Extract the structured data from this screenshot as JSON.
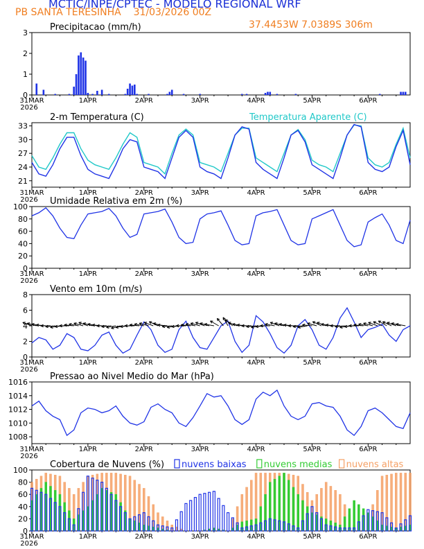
{
  "header": {
    "title": "MCTIC/INPE/CPTEC - MODELO REGIONAL WRF",
    "station": "PB SANTA TERESINHA",
    "run": "31/03/2026 00Z",
    "coords": "37.4453W 7.0389S 306m"
  },
  "colors": {
    "blue": "#1f33e6",
    "cyan": "#20c8c8",
    "orange": "#f5a065",
    "green": "#33cc33",
    "text_orange": "#f07e20",
    "title_blue": "#1a2fd6"
  },
  "time_axis": {
    "labels": [
      "31MAR",
      "1APR",
      "2APR",
      "3APR",
      "4APR",
      "5APR",
      "6APR"
    ],
    "year": "2026",
    "start_hour": 0,
    "end_hour": 162
  },
  "chart_data": [
    {
      "type": "bar",
      "id": "precip",
      "title": "Precipitacao (mm/h)",
      "ylim": [
        0,
        3
      ],
      "yticks": [
        0,
        1,
        2,
        3
      ],
      "color": "#1f33e6",
      "x": [
        2,
        5,
        10,
        16,
        18,
        19,
        20,
        21,
        22,
        23,
        24,
        26,
        28,
        30,
        33,
        40,
        41,
        42,
        43,
        44,
        45,
        50,
        58,
        59,
        60,
        65,
        72,
        90,
        92,
        100,
        101,
        102,
        105,
        113,
        149,
        158,
        159,
        160
      ],
      "y": [
        0.55,
        0.25,
        0.05,
        0.05,
        0.4,
        1.0,
        1.9,
        2.05,
        1.8,
        1.65,
        0.1,
        0.05,
        0.2,
        0.25,
        0.05,
        0.05,
        0.3,
        0.55,
        0.45,
        0.5,
        0.05,
        0.05,
        0.05,
        0.15,
        0.25,
        0.05,
        0.05,
        0.05,
        0.05,
        0.1,
        0.15,
        0.15,
        0.05,
        0.05,
        0.05,
        0.15,
        0.15,
        0.15
      ]
    },
    {
      "type": "line",
      "id": "temp",
      "title": "2-m Temperatura (C)",
      "ylim": [
        19.6,
        33.7
      ],
      "yticks": [
        21,
        24,
        27,
        30,
        33
      ],
      "series": [
        {
          "name": "Temperatura Aparente (C)",
          "color": "#20c8c8",
          "x": [
            0,
            3,
            6,
            9,
            12,
            15,
            18,
            21,
            24,
            27,
            30,
            33,
            36,
            39,
            42,
            45,
            48,
            51,
            54,
            57,
            60,
            63,
            66,
            69,
            72,
            75,
            78,
            81,
            84,
            87,
            90,
            93,
            96,
            99,
            102,
            105,
            108,
            111,
            114,
            117,
            120,
            123,
            126,
            129,
            132,
            135,
            138,
            141,
            144,
            147,
            150,
            153,
            156,
            159,
            162
          ],
          "y": [
            26.5,
            24,
            23.5,
            26,
            29,
            31.5,
            31.5,
            28,
            25.5,
            24.5,
            24,
            23.5,
            26,
            29,
            31.5,
            30.5,
            25,
            24.5,
            24,
            22.5,
            27,
            31,
            32.3,
            31,
            25,
            24.5,
            24,
            23,
            27,
            31,
            32.5,
            32.5,
            26,
            25,
            24,
            23,
            27,
            31,
            32.2,
            30,
            25.5,
            24.5,
            24,
            23,
            27,
            31,
            33.2,
            33,
            26,
            24.5,
            24,
            25,
            29,
            32.5,
            26
          ]
        },
        {
          "name": "",
          "color": "#1f33e6",
          "x": [
            0,
            3,
            6,
            9,
            12,
            15,
            18,
            21,
            24,
            27,
            30,
            33,
            36,
            39,
            42,
            45,
            48,
            51,
            54,
            57,
            60,
            63,
            66,
            69,
            72,
            75,
            78,
            81,
            84,
            87,
            90,
            93,
            96,
            99,
            102,
            105,
            108,
            111,
            114,
            117,
            120,
            123,
            126,
            129,
            132,
            135,
            138,
            141,
            144,
            147,
            150,
            153,
            156,
            159,
            162
          ],
          "y": [
            25,
            22.5,
            22,
            24.5,
            28,
            30.5,
            30.5,
            26.5,
            23.5,
            22.5,
            22,
            21.5,
            24.5,
            28,
            30,
            29.5,
            24,
            23.5,
            23,
            21.5,
            26,
            30.5,
            32,
            30.5,
            24,
            23,
            22.5,
            21.5,
            26,
            31,
            32.8,
            32.3,
            25,
            23.5,
            22.5,
            21.5,
            26,
            31,
            32,
            29.5,
            24.5,
            23.5,
            22.5,
            21.5,
            26,
            31,
            33.3,
            32.8,
            25,
            23.5,
            23,
            24,
            28.5,
            32,
            24.5
          ]
        }
      ],
      "legend": "top-right"
    },
    {
      "type": "line",
      "id": "rh",
      "title": "Umidade Relativa em 2m (%)",
      "ylim": [
        0,
        100
      ],
      "yticks": [
        0,
        20,
        40,
        60,
        80,
        100
      ],
      "color": "#1f33e6",
      "x": [
        0,
        3,
        6,
        9,
        12,
        15,
        18,
        21,
        24,
        27,
        30,
        33,
        36,
        39,
        42,
        45,
        48,
        51,
        54,
        57,
        60,
        63,
        66,
        69,
        72,
        75,
        78,
        81,
        84,
        87,
        90,
        93,
        96,
        99,
        102,
        105,
        108,
        111,
        114,
        117,
        120,
        123,
        126,
        129,
        132,
        135,
        138,
        141,
        144,
        147,
        150,
        153,
        156,
        159,
        162
      ],
      "y": [
        85,
        90,
        98,
        85,
        65,
        50,
        48,
        70,
        88,
        90,
        92,
        97,
        85,
        65,
        50,
        55,
        88,
        90,
        92,
        96,
        75,
        50,
        40,
        42,
        80,
        88,
        90,
        93,
        70,
        45,
        38,
        40,
        85,
        90,
        92,
        95,
        70,
        45,
        38,
        40,
        80,
        85,
        90,
        95,
        70,
        45,
        35,
        38,
        75,
        82,
        88,
        70,
        45,
        40,
        78
      ]
    },
    {
      "type": "line",
      "id": "wind",
      "title": "Vento em 10m (m/s)",
      "ylim": [
        0,
        8
      ],
      "yticks": [
        0,
        2,
        4,
        6,
        8
      ],
      "color": "#1f33e6",
      "x": [
        0,
        3,
        6,
        9,
        12,
        15,
        18,
        21,
        24,
        27,
        30,
        33,
        36,
        39,
        42,
        45,
        48,
        51,
        54,
        57,
        60,
        63,
        66,
        69,
        72,
        75,
        78,
        81,
        84,
        87,
        90,
        93,
        96,
        99,
        102,
        105,
        108,
        111,
        114,
        117,
        120,
        123,
        126,
        129,
        132,
        135,
        138,
        141,
        144,
        147,
        150,
        153,
        156,
        159,
        162
      ],
      "y": [
        1.8,
        2.5,
        2.2,
        1.0,
        1.5,
        3.0,
        2.5,
        1.0,
        0.8,
        1.5,
        2.8,
        3.2,
        1.5,
        0.5,
        1.0,
        2.8,
        4.5,
        3.5,
        1.5,
        0.6,
        1.0,
        3.5,
        4.6,
        2.5,
        1.2,
        1.0,
        2.5,
        4.0,
        4.6,
        2.0,
        0.6,
        1.5,
        5.3,
        4.5,
        3.0,
        1.2,
        0.5,
        1.5,
        4.0,
        4.8,
        3.5,
        1.5,
        1.0,
        2.5,
        5.0,
        6.3,
        4.5,
        2.5,
        3.5,
        3.8,
        4.2,
        2.8,
        2.0,
        3.5,
        4.0
      ],
      "barbs": {
        "note": "wind direction arrows along a 4 m/s baseline",
        "angles": [
          20,
          15,
          10,
          5,
          0,
          -5,
          -10,
          -5,
          0,
          5,
          10,
          15,
          20,
          15,
          10,
          5,
          0,
          -5,
          -10,
          -15,
          -10,
          -5,
          0,
          5,
          10,
          15,
          20,
          25,
          15,
          5,
          -5,
          -10,
          -5,
          0,
          5,
          10,
          15,
          20,
          15,
          10,
          30,
          50,
          60,
          40,
          20,
          10,
          5,
          0,
          -5,
          -10,
          -5,
          0,
          10,
          20,
          15,
          10,
          5,
          0,
          -5,
          -10,
          5,
          15,
          25,
          20,
          10,
          5,
          0,
          -5,
          -10,
          -5,
          0,
          5,
          10,
          15,
          20,
          25,
          30,
          25,
          20,
          15,
          10
        ]
      }
    },
    {
      "type": "line",
      "id": "press",
      "title": "Pressao ao Nivel Medio do Mar (hPa)",
      "ylim": [
        1007,
        1016
      ],
      "yticks": [
        1008,
        1010,
        1012,
        1014,
        1016
      ],
      "color": "#1f33e6",
      "x": [
        0,
        3,
        6,
        9,
        12,
        15,
        18,
        21,
        24,
        27,
        30,
        33,
        36,
        39,
        42,
        45,
        48,
        51,
        54,
        57,
        60,
        63,
        66,
        69,
        72,
        75,
        78,
        81,
        84,
        87,
        90,
        93,
        96,
        99,
        102,
        105,
        108,
        111,
        114,
        117,
        120,
        123,
        126,
        129,
        132,
        135,
        138,
        141,
        144,
        147,
        150,
        153,
        156,
        159,
        162
      ],
      "y": [
        1012.5,
        1013.2,
        1011.8,
        1011.0,
        1010.5,
        1008.2,
        1009.0,
        1011.5,
        1012.2,
        1012.0,
        1011.5,
        1011.8,
        1012.5,
        1011.0,
        1010.0,
        1009.7,
        1010.2,
        1012.3,
        1012.8,
        1012.0,
        1011.5,
        1010.0,
        1009.5,
        1010.8,
        1012.5,
        1014.3,
        1013.8,
        1014.0,
        1012.5,
        1010.5,
        1009.8,
        1010.5,
        1013.5,
        1014.5,
        1014.0,
        1014.8,
        1012.5,
        1011.0,
        1010.5,
        1011.0,
        1012.8,
        1013.0,
        1012.5,
        1012.3,
        1011.0,
        1009.0,
        1008.2,
        1009.5,
        1011.8,
        1012.2,
        1011.5,
        1010.5,
        1009.5,
        1009.2,
        1011.5
      ]
    },
    {
      "type": "bar",
      "id": "clouds",
      "title": "Cobertura de Nuvens (%)",
      "ylim": [
        0,
        100
      ],
      "yticks": [
        0,
        20,
        40,
        60,
        80,
        100
      ],
      "legend": "top-right",
      "series": [
        {
          "name": "nuvens baixas",
          "color": "#1f33e6",
          "x": [
            0,
            6,
            12,
            18,
            24,
            30,
            36,
            42,
            48,
            54,
            60,
            66,
            72,
            78,
            84,
            90,
            96,
            102,
            108,
            114,
            120,
            126,
            132,
            138,
            144,
            150,
            156,
            162
          ],
          "y": [
            70,
            60,
            40,
            10,
            90,
            80,
            50,
            20,
            30,
            10,
            5,
            45,
            60,
            65,
            30,
            5,
            10,
            20,
            15,
            5,
            40,
            10,
            5,
            5,
            35,
            30,
            5,
            25
          ]
        },
        {
          "name": "nuvens medias",
          "color": "#33cc33",
          "x": [
            0,
            6,
            12,
            18,
            24,
            30,
            36,
            42,
            48,
            54,
            60,
            66,
            72,
            78,
            84,
            90,
            96,
            102,
            108,
            114,
            120,
            126,
            132,
            138,
            144,
            150,
            156,
            162
          ],
          "y": [
            50,
            80,
            60,
            20,
            40,
            70,
            60,
            20,
            10,
            5,
            0,
            0,
            0,
            5,
            0,
            15,
            20,
            80,
            95,
            60,
            30,
            20,
            10,
            50,
            30,
            10,
            5,
            10
          ]
        },
        {
          "name": "nuvens altas",
          "color": "#f5a065",
          "x": [
            0,
            6,
            12,
            18,
            24,
            30,
            36,
            42,
            48,
            54,
            60,
            66,
            72,
            78,
            84,
            90,
            96,
            102,
            108,
            114,
            120,
            126,
            132,
            138,
            144,
            150,
            156,
            162
          ],
          "y": [
            80,
            95,
            90,
            60,
            90,
            95,
            95,
            90,
            70,
            30,
            10,
            0,
            0,
            5,
            0,
            60,
            95,
            95,
            95,
            90,
            50,
            80,
            60,
            10,
            20,
            90,
            95,
            95
          ]
        }
      ]
    }
  ]
}
